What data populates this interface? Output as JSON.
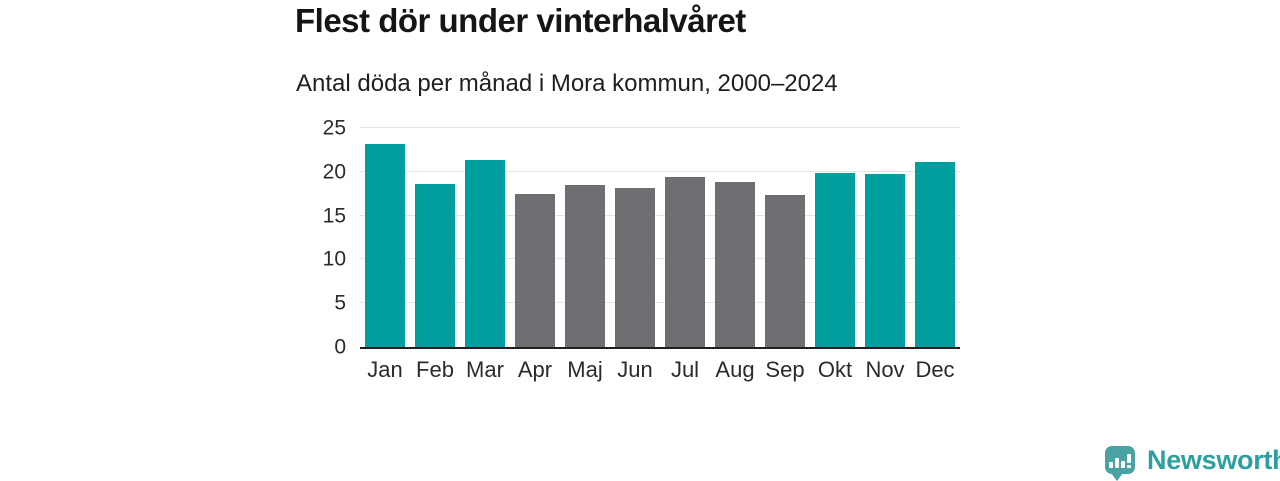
{
  "header": {
    "title": "Flest dör under vinterhalvåret",
    "subtitle": "Antal döda per månad i Mora kommun, 2000–2024"
  },
  "chart_data": {
    "type": "bar",
    "title": "Flest dör under vinterhalvåret",
    "subtitle": "Antal döda per månad i Mora kommun, 2000–2024",
    "categories": [
      "Jan",
      "Feb",
      "Mar",
      "Apr",
      "Maj",
      "Jun",
      "Jul",
      "Aug",
      "Sep",
      "Okt",
      "Nov",
      "Dec"
    ],
    "values": [
      23.2,
      18.6,
      21.4,
      17.5,
      18.5,
      18.1,
      19.4,
      18.8,
      17.4,
      19.9,
      19.7,
      21.1
    ],
    "highlighted": [
      true,
      true,
      true,
      false,
      false,
      false,
      false,
      false,
      false,
      true,
      true,
      true
    ],
    "xlabel": "",
    "ylabel": "",
    "ylim": [
      0,
      25
    ],
    "yticks": [
      0,
      5,
      10,
      15,
      20,
      25
    ],
    "grid": true,
    "legend": "none",
    "colors": {
      "highlight_bar": "#009e9c",
      "regular_bar": "#6e6e73",
      "gridline": "#e4e4e4",
      "axis_line": "#1f1f1f"
    }
  },
  "footer": {
    "brand": "Newsworthy",
    "brand_color": "#2e9fa1",
    "logo_icon": "bar-chart-speech-bubble-icon"
  }
}
